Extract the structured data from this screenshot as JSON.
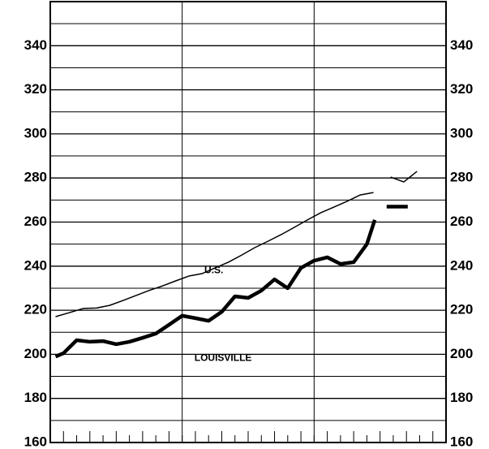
{
  "chart_data": {
    "type": "line",
    "xlim": [
      0,
      30
    ],
    "xticks": [
      0,
      1,
      2,
      3,
      4,
      5,
      6,
      7,
      8,
      9,
      10,
      11,
      12,
      13,
      14,
      15,
      16,
      17,
      18,
      19,
      20,
      21,
      22,
      23,
      24,
      25,
      26,
      27,
      28,
      29,
      30
    ],
    "xgrid": [
      10,
      20
    ],
    "ylim": [
      160,
      360
    ],
    "yticks": [
      160,
      180,
      200,
      220,
      240,
      260,
      280,
      300,
      320,
      340
    ],
    "yminor": [
      170,
      190,
      210,
      230,
      250,
      270,
      290,
      310,
      330,
      350
    ],
    "grid": true,
    "series": [
      {
        "name": "U.S.",
        "color": "#000",
        "width": 1.5,
        "x": [
          0.4,
          1.5,
          2.5,
          3.5,
          4.5,
          5.5,
          6.5,
          7.5,
          8.5,
          9.5,
          10.5,
          11.5,
          12.5,
          13.5,
          14.5,
          15.5,
          16.5,
          17.5,
          18.5,
          19.5,
          20.5,
          21.5,
          22.5,
          23.5,
          24.5,
          25.2,
          25.8,
          26.8,
          27.8
        ],
        "values": [
          217.1,
          219,
          220.8,
          221,
          222.2,
          224.4,
          226.7,
          229,
          231,
          233.3,
          235.5,
          236.6,
          239.2,
          241.8,
          245,
          248.4,
          251.3,
          254.3,
          257.6,
          261,
          264.2,
          266.8,
          269.4,
          272.3,
          273.4,
          null,
          280.4,
          278.2,
          283
        ]
      },
      {
        "name": "LOUISVILLE",
        "color": "#000",
        "width": 4.5,
        "x": [
          0.4,
          1,
          2,
          3,
          4,
          5,
          6,
          7,
          8,
          9,
          10,
          11,
          12,
          13,
          14,
          15,
          16,
          17,
          18,
          19,
          20,
          21,
          22,
          23,
          24,
          24.6,
          25,
          25.5,
          27.1
        ],
        "values": [
          199,
          200.5,
          206.4,
          205.7,
          206,
          204.6,
          205.7,
          207.5,
          209.4,
          213.4,
          217.5,
          216.4,
          215.2,
          219.3,
          226.3,
          225.6,
          228.9,
          234,
          230,
          239.2,
          242.5,
          244,
          241,
          241.8,
          250,
          261,
          null,
          267,
          267
        ]
      }
    ],
    "annotations": [
      {
        "text": "U.S.",
        "x": 12.4,
        "y": 237.9
      },
      {
        "text": "LOUISVILLE",
        "x": 13.1,
        "y": 198.2
      }
    ]
  }
}
